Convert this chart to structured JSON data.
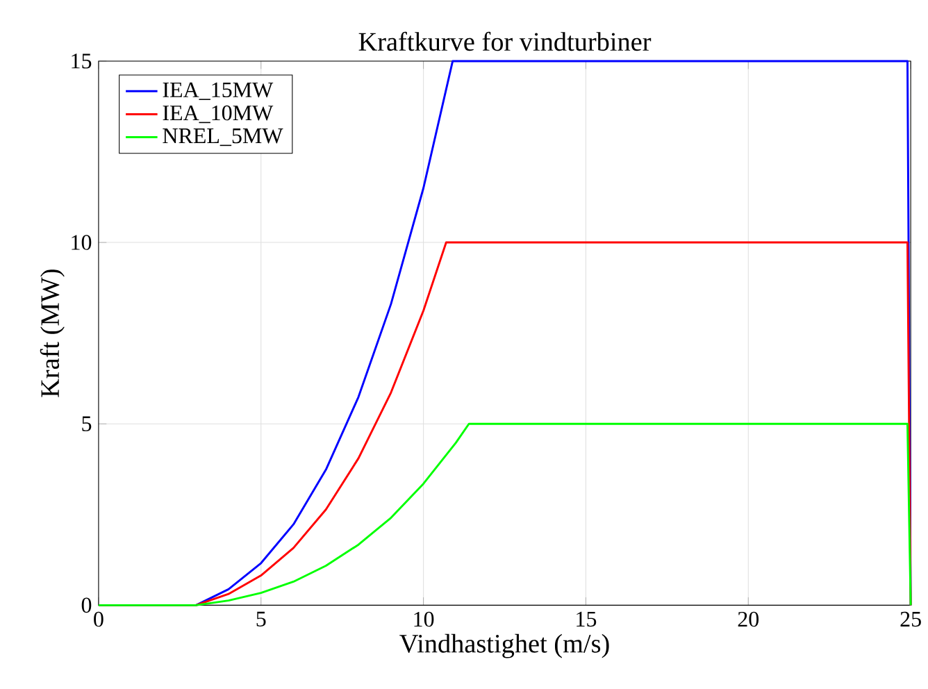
{
  "chart_data": {
    "type": "line",
    "title": "Kraftkurve for vindturbiner",
    "xlabel": "Vindhastighet (m/s)",
    "ylabel": "Kraft (MW)",
    "xlim": [
      0,
      25
    ],
    "xticks": [
      0,
      5,
      10,
      15,
      20,
      25
    ],
    "ylim": [
      0,
      15
    ],
    "yticks": [
      0,
      5,
      10,
      15
    ],
    "grid": true,
    "legend": "top left",
    "marker": "none",
    "line_style": "solid",
    "series": [
      {
        "name": "IEA_15MW",
        "color": "#0000ff",
        "x": [
          0,
          3,
          4,
          5,
          6,
          7,
          8,
          9,
          10,
          10.9,
          24.9,
          25
        ],
        "values": [
          0,
          0,
          0.44,
          1.16,
          2.23,
          3.74,
          5.74,
          8.3,
          11.5,
          15,
          15,
          0
        ]
      },
      {
        "name": "IEA_10MW",
        "color": "#ff0000",
        "x": [
          0,
          3,
          4,
          5,
          6,
          7,
          8,
          9,
          10,
          10.7,
          24.9,
          25
        ],
        "values": [
          0,
          0,
          0.31,
          0.82,
          1.58,
          2.64,
          4.05,
          5.86,
          8.12,
          10,
          10,
          0
        ]
      },
      {
        "name": "NREL_5MW",
        "color": "#00ff00",
        "x": [
          0,
          3,
          4,
          5,
          6,
          7,
          8,
          9,
          10,
          11,
          11.4,
          24.9,
          25
        ],
        "values": [
          0,
          0,
          0.13,
          0.34,
          0.65,
          1.09,
          1.67,
          2.41,
          3.35,
          4.48,
          5,
          5,
          0
        ]
      }
    ]
  }
}
